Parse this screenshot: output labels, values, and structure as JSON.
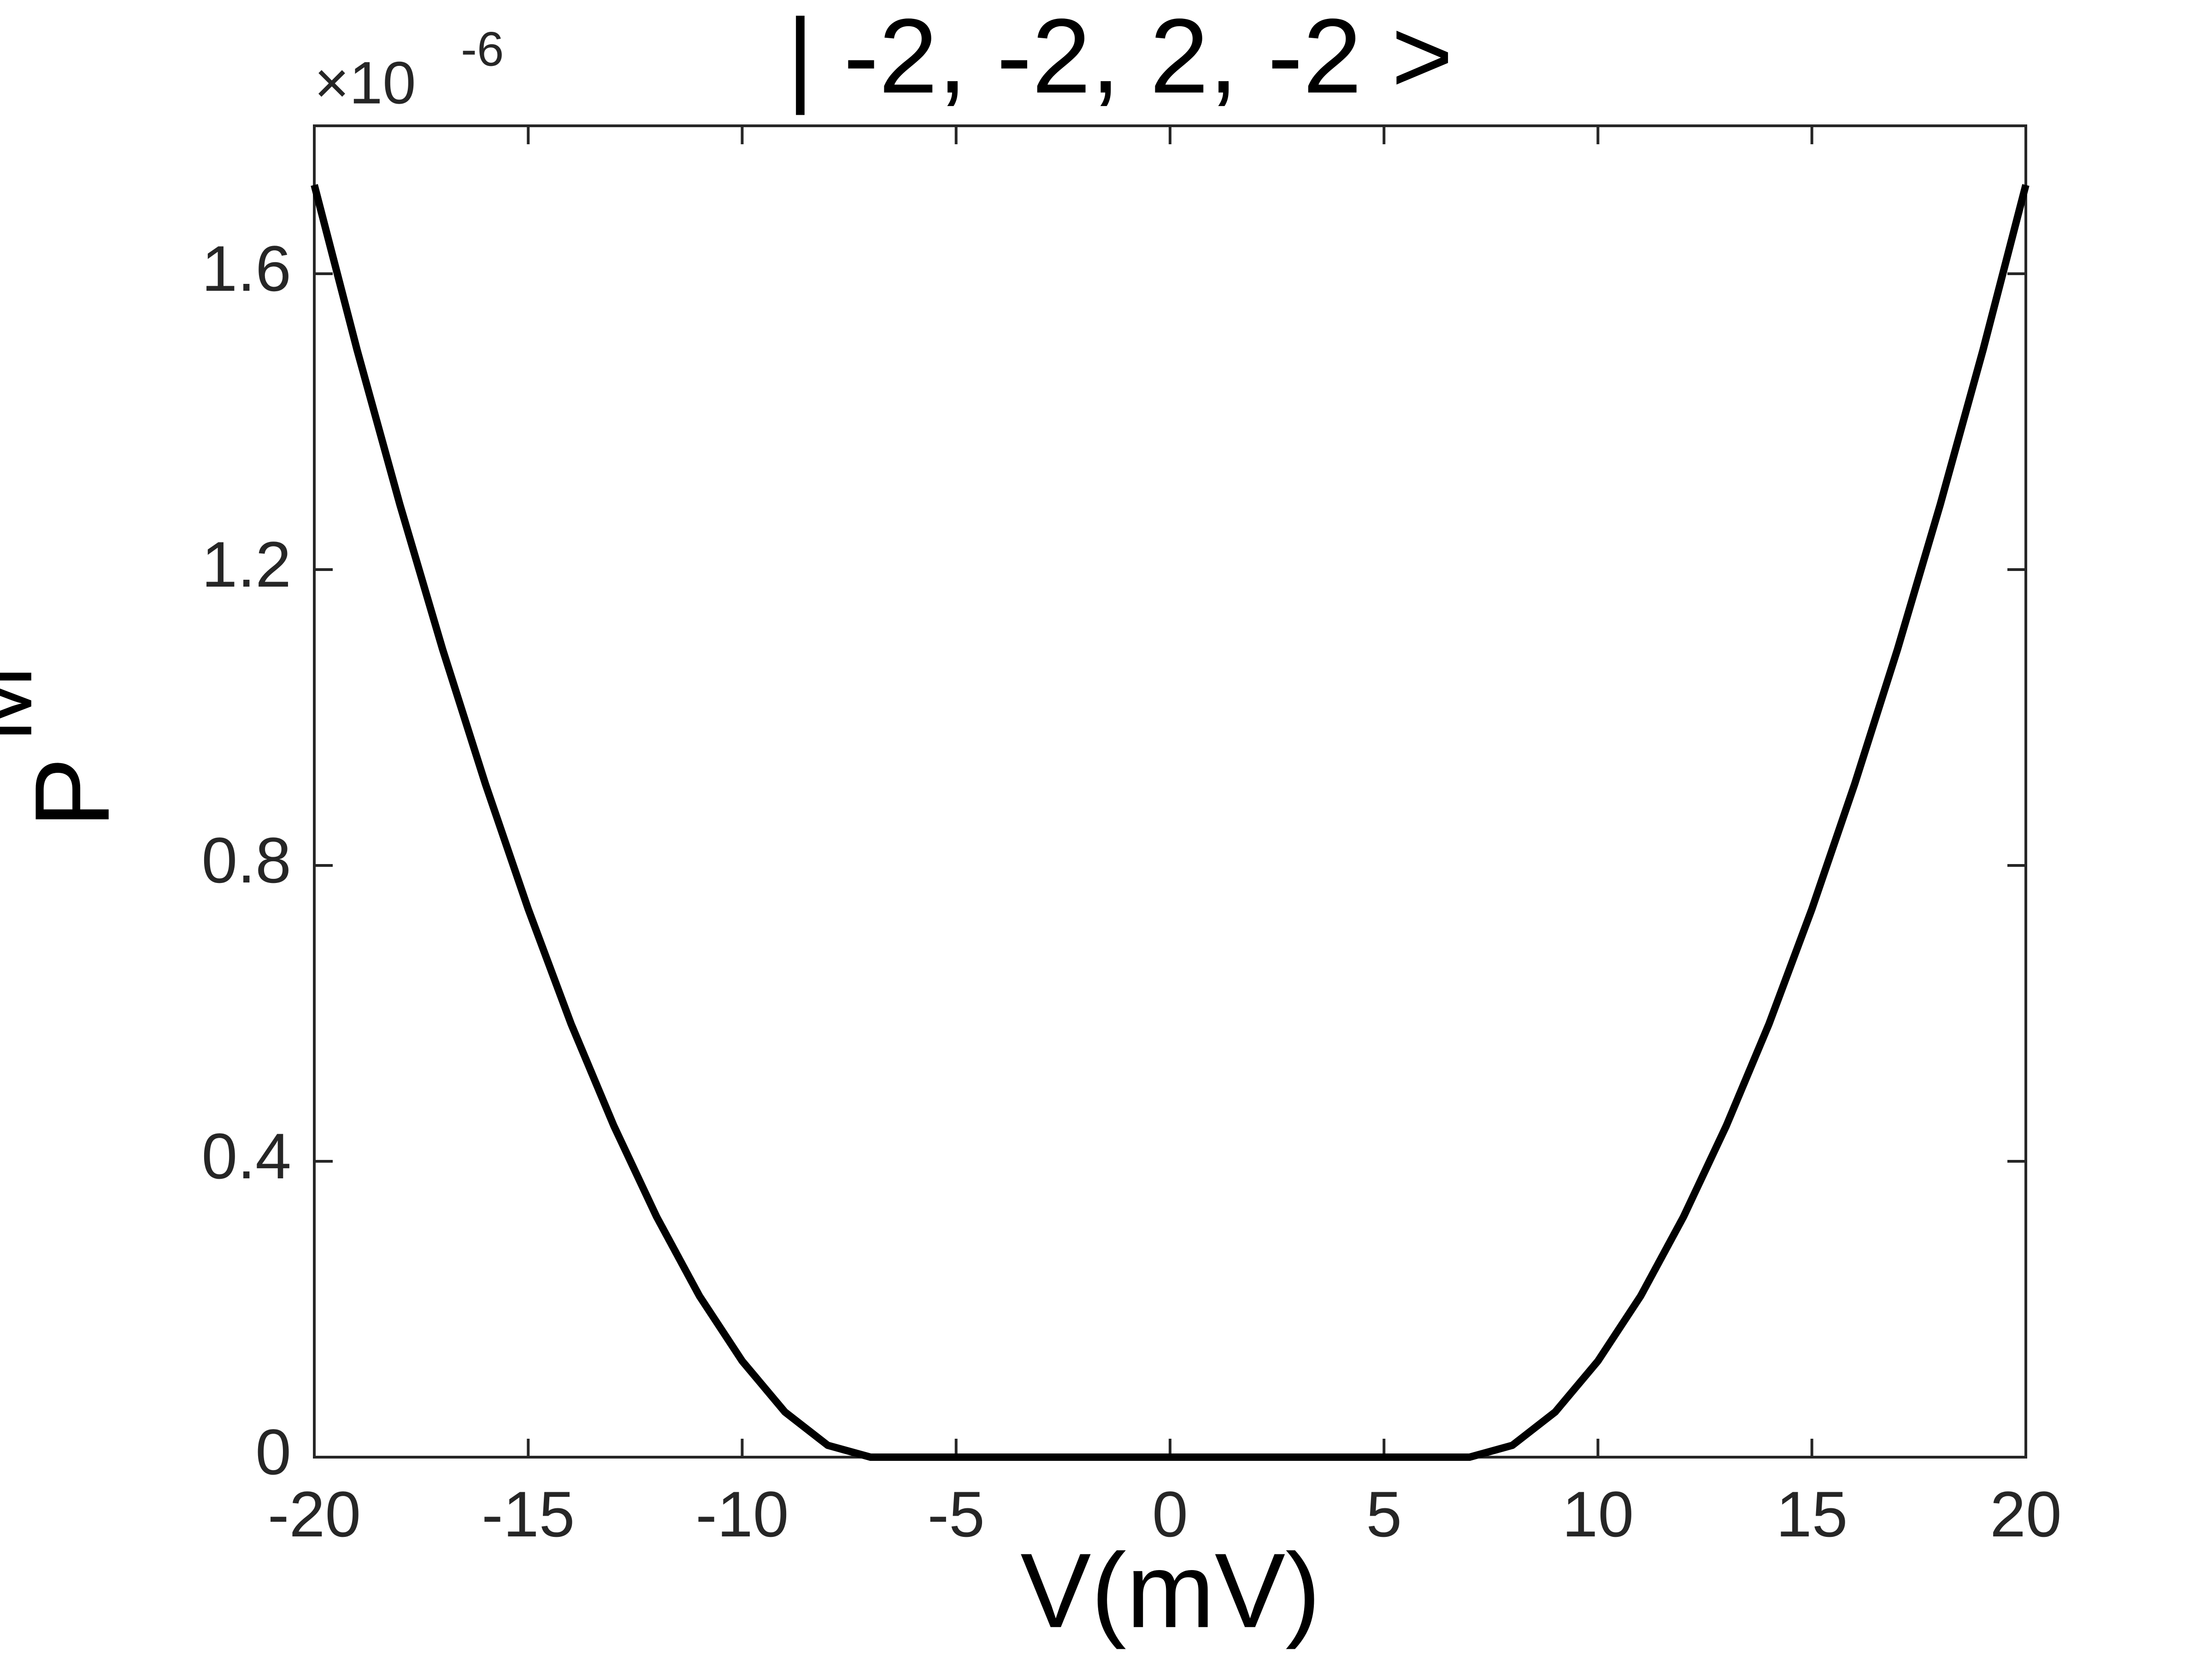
{
  "chart_data": {
    "type": "line",
    "title": "| -2, -2, 2, -2 >",
    "xlabel": "V(mV)",
    "ylabel": {
      "main": "P",
      "sub": "M"
    },
    "y_multiplier": {
      "base": "×10",
      "exponent": "-6"
    },
    "x": [
      -20,
      -19,
      -18,
      -17,
      -16,
      -15,
      -14,
      -13,
      -12,
      -11,
      -10,
      -9,
      -8,
      -7,
      -6,
      -5,
      -4,
      -3,
      -2,
      -1,
      0,
      1,
      2,
      3,
      4,
      5,
      6,
      7,
      8,
      9,
      10,
      11,
      12,
      13,
      14,
      15,
      16,
      17,
      18,
      19,
      20
    ],
    "series": [
      {
        "color": "#000000",
        "values": [
          1.72,
          1.497,
          1.288,
          1.092,
          0.91,
          0.741,
          0.586,
          0.448,
          0.325,
          0.218,
          0.13,
          0.061,
          0.016,
          0,
          0,
          0,
          0,
          0,
          0,
          0,
          0,
          0,
          0,
          0,
          0,
          0,
          0,
          0,
          0.016,
          0.061,
          0.13,
          0.218,
          0.325,
          0.448,
          0.586,
          0.741,
          0.91,
          1.092,
          1.288,
          1.497,
          1.72
        ]
      }
    ],
    "xlim": [
      -20,
      20
    ],
    "xticks": [
      -20,
      -15,
      -10,
      -5,
      0,
      5,
      10,
      15,
      20
    ],
    "ylim": [
      0,
      1.8
    ],
    "yticks": [
      0,
      0.4,
      0.8,
      1.2,
      1.6
    ],
    "grid": false
  }
}
